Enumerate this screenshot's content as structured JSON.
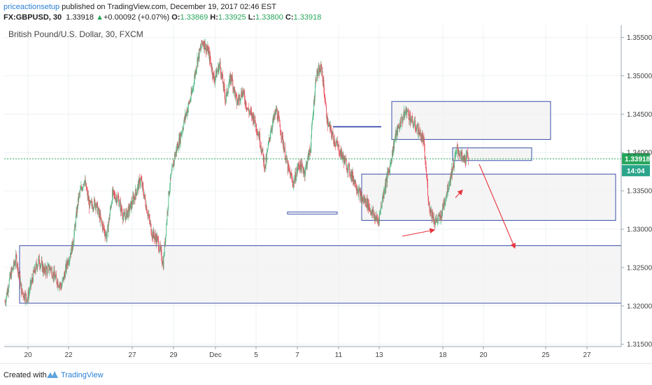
{
  "header": {
    "author": "priceactionsetup",
    "published": " published on TradingView.com, December 19, 2017 02:46 EST",
    "symbol": "FX:GBPUSD, 30",
    "last": "1.33918",
    "change_arrow": "▲",
    "change": "+0.00092 (+0.07%)",
    "o_label": "O:",
    "o_value": "1.33869",
    "h_label": "H:",
    "h_value": "1.33925",
    "l_label": "L:",
    "l_value": "1.33800",
    "c_label": "C:",
    "c_value": "1.33918"
  },
  "footer": {
    "created_with": "Created with",
    "brand": "TradingView"
  },
  "chart_data": {
    "type": "candlestick",
    "title": "British Pound/U.S. Dollar, 30, FXCM",
    "ylim": [
      1.3147,
      1.3566
    ],
    "y_ticks": [
      "1.35500",
      "1.35000",
      "1.34500",
      "1.34000",
      "1.33500",
      "1.33000",
      "1.32500",
      "1.32000",
      "1.31500"
    ],
    "x_ticks": [
      "20",
      "22",
      "27",
      "29",
      "Dec",
      "5",
      "7",
      "11",
      "13",
      "18",
      "20",
      "25",
      "27"
    ],
    "current_price": "1.33918",
    "countdown": "14:04",
    "colors": {
      "up": "#53b987",
      "down": "#eb4d5c",
      "box_border": "#3a4fa8",
      "box_fill": "#f1f1f1",
      "arrow": "#e8333b",
      "price_label": "#26a65b",
      "timer_label": "#2aa58a"
    },
    "grid": true,
    "price_path": [
      1.3205,
      1.324,
      1.3262,
      1.3218,
      1.321,
      1.324,
      1.326,
      1.3245,
      1.325,
      1.3235,
      1.3225,
      1.3255,
      1.328,
      1.334,
      1.3365,
      1.333,
      1.3335,
      1.331,
      1.329,
      1.3345,
      1.334,
      1.3315,
      1.3325,
      1.3345,
      1.3365,
      1.333,
      1.3295,
      1.3285,
      1.3255,
      1.335,
      1.3395,
      1.342,
      1.345,
      1.3475,
      1.352,
      1.3545,
      1.353,
      1.3495,
      1.3515,
      1.347,
      1.35,
      1.3465,
      1.348,
      1.3455,
      1.3445,
      1.342,
      1.338,
      1.343,
      1.3455,
      1.342,
      1.338,
      1.336,
      1.3385,
      1.3375,
      1.3405,
      1.35,
      1.351,
      1.344,
      1.342,
      1.3405,
      1.339,
      1.3375,
      1.336,
      1.334,
      1.3335,
      1.332,
      1.331,
      1.335,
      1.338,
      1.342,
      1.344,
      1.3455,
      1.344,
      1.343,
      1.3415,
      1.333,
      1.331,
      1.3315,
      1.3345,
      1.3375,
      1.3405,
      1.339,
      1.3395
    ]
  }
}
